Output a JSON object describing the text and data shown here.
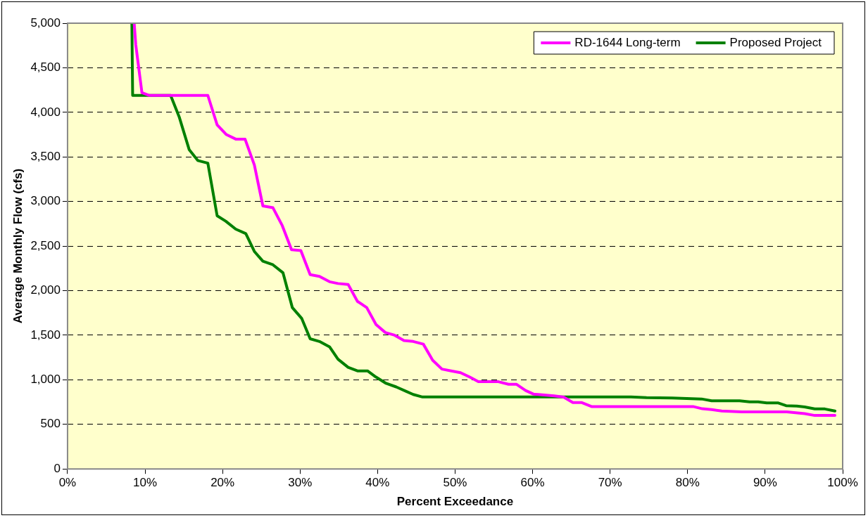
{
  "chart_data": {
    "type": "line",
    "xlabel": "Percent Exceedance",
    "ylabel": "Average Monthly Flow (cfs)",
    "xlim": [
      0,
      100
    ],
    "xticks": [
      {
        "value": 0,
        "label": "0%"
      },
      {
        "value": 10,
        "label": "10%"
      },
      {
        "value": 20,
        "label": "20%"
      },
      {
        "value": 30,
        "label": "30%"
      },
      {
        "value": 40,
        "label": "40%"
      },
      {
        "value": 50,
        "label": "50%"
      },
      {
        "value": 60,
        "label": "60%"
      },
      {
        "value": 70,
        "label": "70%"
      },
      {
        "value": 80,
        "label": "80%"
      },
      {
        "value": 90,
        "label": "90%"
      },
      {
        "value": 100,
        "label": "100%"
      }
    ],
    "ylim": [
      0,
      5000
    ],
    "yticks": [
      0,
      {
        "value": 500,
        "label": "500"
      },
      {
        "value": 1000,
        "label": "1,000"
      },
      {
        "value": 1500,
        "label": "1,500"
      },
      {
        "value": 2000,
        "label": "2,000"
      },
      {
        "value": 2500,
        "label": "2,500"
      },
      {
        "value": 3000,
        "label": "3,000"
      },
      {
        "value": 3500,
        "label": "3,500"
      },
      {
        "value": 4000,
        "label": "4,000"
      },
      {
        "value": 4500,
        "label": "4,500"
      },
      {
        "value": 5000,
        "label": "5,000"
      }
    ],
    "grid": "y",
    "legend": "top right",
    "marker": "none",
    "line_style": "solid",
    "series": [
      {
        "name": "RD-1644 Long-term",
        "color": "#ff00ff",
        "x": [
          8.6,
          8.8,
          9.6,
          10.5,
          18.1,
          19.3,
          20.5,
          21.7,
          22.9,
          24.1,
          25.2,
          26.5,
          27.7,
          28.9,
          30.1,
          31.3,
          32.5,
          33.8,
          34.9,
          36.2,
          37.4,
          38.6,
          39.8,
          41.0,
          42.2,
          43.4,
          44.6,
          45.9,
          47.1,
          48.3,
          49.5,
          50.7,
          51.9,
          53.0,
          55.5,
          56.9,
          57.9,
          59.1,
          60.1,
          62.8,
          64.0,
          65.2,
          66.3,
          67.6,
          80.7,
          81.9,
          83.1,
          84.4,
          87.0,
          92.8,
          95.1,
          96.4,
          99.0
        ],
        "values": [
          5000,
          4760,
          4220,
          4190,
          4190,
          3860,
          3750,
          3700,
          3700,
          3410,
          2950,
          2930,
          2730,
          2460,
          2450,
          2180,
          2160,
          2100,
          2080,
          2070,
          1880,
          1810,
          1620,
          1530,
          1500,
          1440,
          1430,
          1400,
          1220,
          1120,
          1100,
          1080,
          1030,
          980,
          980,
          950,
          950,
          880,
          840,
          820,
          805,
          745,
          745,
          700,
          700,
          675,
          665,
          650,
          640,
          640,
          620,
          600,
          600
        ]
      },
      {
        "name": "Proposed Project",
        "color": "#008000",
        "x": [
          8.3,
          8.4,
          13.3,
          14.4,
          15.7,
          16.8,
          18.1,
          19.3,
          20.4,
          21.7,
          23.0,
          24.1,
          25.2,
          26.5,
          27.8,
          29.0,
          30.2,
          31.3,
          32.5,
          33.8,
          34.9,
          36.2,
          37.4,
          38.7,
          39.8,
          41.1,
          42.4,
          43.7,
          44.6,
          45.8,
          64.0,
          72.7,
          74.7,
          78.0,
          81.8,
          83.1,
          86.7,
          88.0,
          89.1,
          90.2,
          91.7,
          92.7,
          94.1,
          95.1,
          96.4,
          97.7,
          99.0
        ],
        "values": [
          5000,
          4190,
          4190,
          3950,
          3580,
          3460,
          3430,
          2840,
          2780,
          2690,
          2640,
          2440,
          2330,
          2290,
          2200,
          1810,
          1690,
          1460,
          1430,
          1370,
          1230,
          1140,
          1100,
          1100,
          1030,
          960,
          920,
          870,
          835,
          807,
          807,
          807,
          800,
          795,
          785,
          765,
          765,
          753,
          753,
          740,
          740,
          710,
          705,
          695,
          673,
          673,
          650
        ]
      }
    ]
  }
}
